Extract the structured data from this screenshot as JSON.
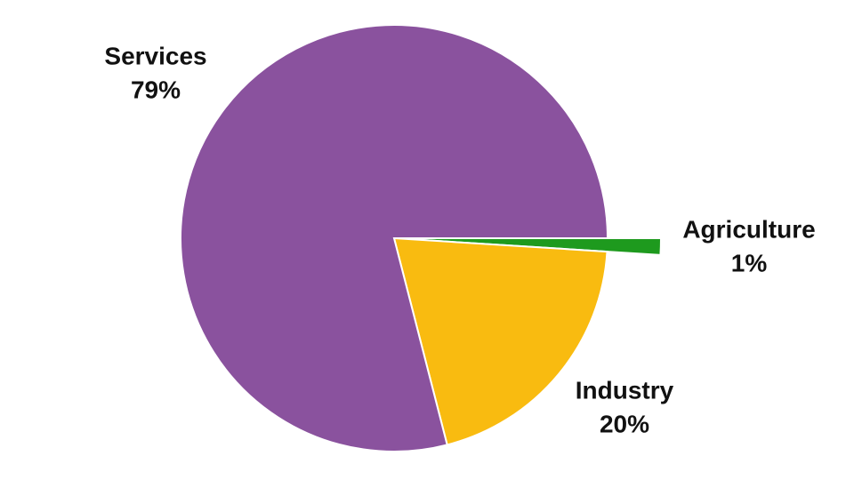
{
  "chart_data": {
    "type": "pie",
    "categories": [
      "Agriculture",
      "Industry",
      "Services"
    ],
    "values": [
      1,
      20,
      79
    ],
    "value_labels": [
      "1%",
      "20%",
      "79%"
    ],
    "colors": [
      "#1e9a1e",
      "#f9bb10",
      "#8a529e"
    ]
  }
}
